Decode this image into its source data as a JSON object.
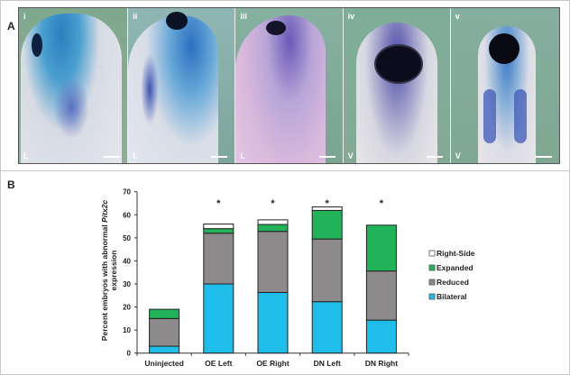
{
  "panel_a": {
    "label": "A",
    "images": [
      {
        "numeral": "i",
        "view": "L"
      },
      {
        "numeral": "ii",
        "view": "L"
      },
      {
        "numeral": "iii",
        "view": "L"
      },
      {
        "numeral": "iv",
        "view": "V"
      },
      {
        "numeral": "v",
        "view": "V"
      }
    ]
  },
  "panel_b": {
    "label": "B"
  },
  "chart_data": {
    "type": "bar",
    "stacked": true,
    "title": "",
    "xlabel": "",
    "ylabel_line1": "Percent embryos with abnormal ",
    "ylabel_italic": "Pitx2c",
    "ylabel_line2": "expression",
    "ylim": [
      0,
      70
    ],
    "yticks": [
      "0",
      "10",
      "20",
      "30",
      "40",
      "50",
      "60",
      "70"
    ],
    "categories": [
      "Uninjected",
      "OE Left",
      "OE Right",
      "DN Left",
      "DN Right"
    ],
    "significance": [
      "",
      "*",
      "*",
      "*",
      "*"
    ],
    "legend_position": "right",
    "series": [
      {
        "name": "Bilateral",
        "color": "#1fbdea",
        "values": [
          3,
          30,
          26.3,
          22.3,
          14.3
        ]
      },
      {
        "name": "Reduced",
        "color": "#8c8a8a",
        "values": [
          12,
          22,
          26.5,
          27.2,
          21.3
        ]
      },
      {
        "name": "Expanded",
        "color": "#22b35a",
        "values": [
          4,
          2,
          3,
          12.4,
          19.9
        ]
      },
      {
        "name": "Right-Side",
        "color": "#ffffff",
        "values": [
          0,
          2,
          2,
          1.5,
          0
        ]
      }
    ]
  }
}
